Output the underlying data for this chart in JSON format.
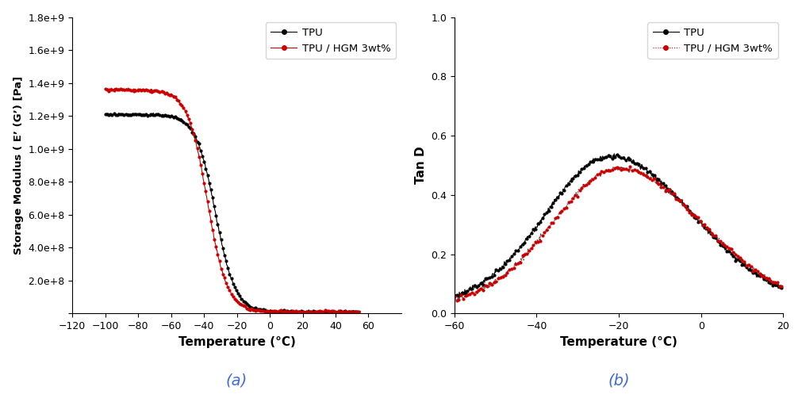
{
  "plot_a": {
    "title": "(a)",
    "xlabel": "Temperature (°C)",
    "ylabel": "Storage Modulus ( E’ (G’) [Pa]",
    "xlim": [
      -120,
      80
    ],
    "ylim": [
      0,
      1800000000.0
    ],
    "xticks": [
      -120,
      -100,
      -80,
      -60,
      -40,
      -20,
      0,
      20,
      40,
      60
    ],
    "ytick_vals": [
      0,
      200000000.0,
      400000000.0,
      600000000.0,
      800000000.0,
      1000000000.0,
      1200000000.0,
      1400000000.0,
      1600000000.0,
      1800000000.0
    ],
    "ytick_labels": [
      "",
      "2.0e+8",
      "4.0e+8",
      "6.0e+8",
      "8.0e+8",
      "1.0e+9",
      "1.2e+9",
      "1.4e+9",
      "1.6e+9",
      "1.8e+9"
    ],
    "legend": [
      "TPU",
      "TPU / HGM 3wt%"
    ],
    "tpu_color": "#000000",
    "hgm_color": "#cc0000"
  },
  "plot_b": {
    "title": "(b)",
    "xlabel": "Temperature (°C)",
    "ylabel": "Tan D",
    "xlim": [
      -60,
      20
    ],
    "ylim": [
      0,
      1.0
    ],
    "xticks": [
      -60,
      -40,
      -20,
      0,
      20
    ],
    "yticks": [
      0.0,
      0.2,
      0.4,
      0.6,
      0.8,
      1.0
    ],
    "legend": [
      "TPU",
      "TPU / HGM 3wt%"
    ],
    "tpu_color": "#000000",
    "hgm_color": "#cc0000",
    "hgm_line_color": "#00bfbf"
  }
}
